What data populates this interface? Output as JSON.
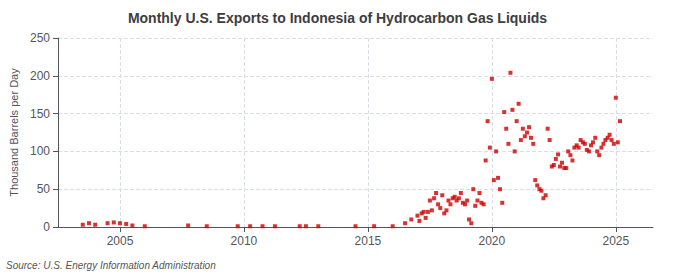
{
  "chart_data": {
    "type": "scatter",
    "title": "Monthly U.S. Exports to Indonesia of Hydrocarbon Gas Liquids",
    "ylabel": "Thousand Barrels per Day",
    "source": "Source: U.S. Energy Information Administration",
    "color": "#cc0000",
    "marker": "square",
    "grid": true,
    "xlim": [
      2002.5,
      2026.5
    ],
    "xticks": [
      2005,
      2010,
      2015,
      2020,
      2025
    ],
    "ylim": [
      0,
      250
    ],
    "yticks": [
      0,
      50,
      100,
      150,
      200,
      250
    ],
    "x": [
      2003.5,
      2003.75,
      2004.0,
      2004.5,
      2004.75,
      2005.0,
      2005.25,
      2005.5,
      2006.0,
      2007.75,
      2008.5,
      2009.75,
      2010.25,
      2010.75,
      2011.25,
      2012.25,
      2012.5,
      2013.0,
      2014.5,
      2015.25,
      2016.0,
      2016.5,
      2016.75,
      2017.0,
      2017.08,
      2017.17,
      2017.25,
      2017.33,
      2017.42,
      2017.5,
      2017.58,
      2017.67,
      2017.75,
      2017.83,
      2017.92,
      2018.0,
      2018.08,
      2018.17,
      2018.25,
      2018.33,
      2018.42,
      2018.5,
      2018.58,
      2018.67,
      2018.75,
      2018.83,
      2018.92,
      2019.0,
      2019.08,
      2019.17,
      2019.25,
      2019.33,
      2019.42,
      2019.5,
      2019.58,
      2019.67,
      2019.75,
      2019.83,
      2019.92,
      2020.0,
      2020.08,
      2020.17,
      2020.25,
      2020.33,
      2020.42,
      2020.5,
      2020.58,
      2020.67,
      2020.75,
      2020.83,
      2020.92,
      2021.0,
      2021.08,
      2021.17,
      2021.25,
      2021.33,
      2021.42,
      2021.5,
      2021.58,
      2021.67,
      2021.75,
      2021.83,
      2021.92,
      2022.0,
      2022.08,
      2022.17,
      2022.25,
      2022.33,
      2022.42,
      2022.5,
      2022.58,
      2022.67,
      2022.75,
      2022.83,
      2022.92,
      2023.0,
      2023.08,
      2023.17,
      2023.25,
      2023.33,
      2023.42,
      2023.5,
      2023.58,
      2023.67,
      2023.75,
      2023.83,
      2023.92,
      2024.0,
      2024.08,
      2024.17,
      2024.25,
      2024.33,
      2024.42,
      2024.5,
      2024.58,
      2024.67,
      2024.75,
      2024.83,
      2024.92,
      2025.0,
      2025.08,
      2025.17
    ],
    "values": [
      3,
      5,
      3,
      5,
      6,
      5,
      4,
      2,
      1,
      2,
      1,
      1,
      1,
      1,
      1,
      1,
      1,
      1,
      1,
      1,
      1,
      5,
      10,
      15,
      8,
      18,
      20,
      12,
      20,
      35,
      22,
      38,
      45,
      30,
      25,
      42,
      18,
      22,
      35,
      30,
      38,
      40,
      35,
      38,
      45,
      32,
      30,
      35,
      10,
      5,
      50,
      28,
      35,
      45,
      32,
      30,
      88,
      140,
      105,
      196,
      62,
      100,
      65,
      50,
      32,
      152,
      130,
      110,
      204,
      155,
      100,
      140,
      163,
      115,
      130,
      120,
      125,
      132,
      118,
      110,
      62,
      55,
      50,
      48,
      38,
      42,
      130,
      115,
      80,
      82,
      90,
      96,
      80,
      85,
      78,
      78,
      100,
      95,
      88,
      105,
      108,
      105,
      115,
      112,
      110,
      102,
      100,
      108,
      112,
      118,
      100,
      95,
      105,
      110,
      115,
      118,
      122,
      115,
      110,
      171,
      112,
      140
    ]
  }
}
